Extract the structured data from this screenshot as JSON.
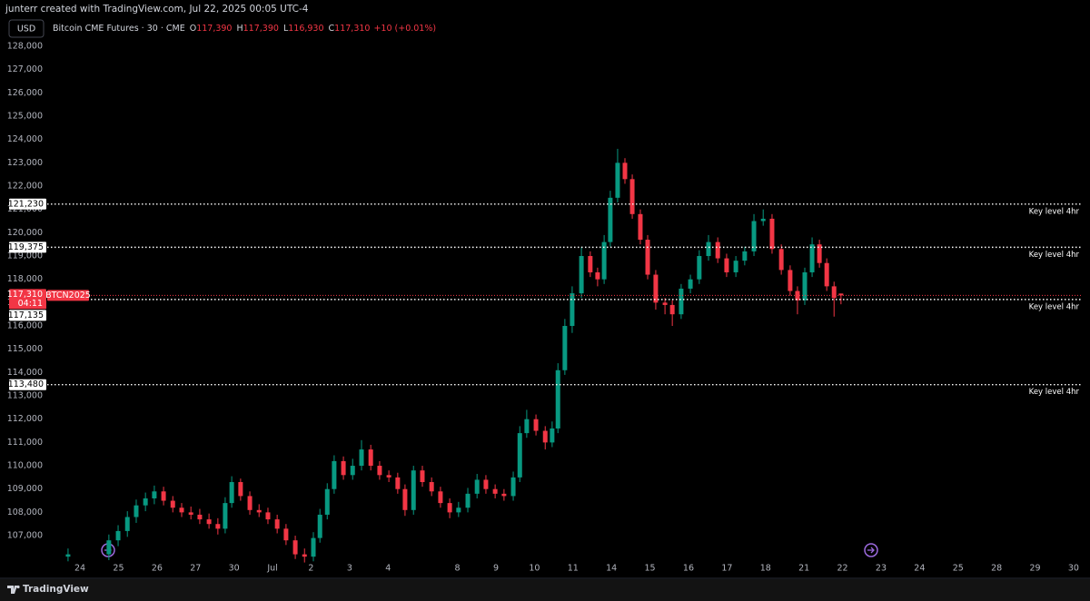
{
  "header": {
    "text": "junterr created with TradingView.com, Jul 22, 2025 00:05 UTC-4"
  },
  "footer": {
    "brand": "TradingView"
  },
  "chart_data": {
    "type": "candlestick",
    "currency": "USD",
    "legend": {
      "symbol": "Bitcoin CME Futures · 30 · CME",
      "fields": [
        {
          "key": "O",
          "value": "117,390"
        },
        {
          "key": "H",
          "value": "117,390"
        },
        {
          "key": "L",
          "value": "116,930"
        },
        {
          "key": "C",
          "value": "117,310"
        }
      ],
      "change": "+10 (+0.01%)"
    },
    "up_color": "#089981",
    "down_color": "#f23645",
    "x": [
      -0.31,
      0.75,
      0.99,
      1.23,
      1.46,
      1.7,
      1.93,
      2.17,
      2.41,
      2.64,
      2.88,
      3.11,
      3.35,
      3.58,
      3.77,
      3.94,
      4.17,
      4.41,
      4.65,
      4.88,
      5.12,
      5.35,
      5.59,
      5.83,
      6.06,
      6.23,
      6.42,
      6.6,
      6.84,
      7.08,
      7.31,
      7.55,
      7.78,
      8.02,
      8.25,
      8.44,
      8.66,
      8.89,
      9.13,
      9.36,
      9.6,
      9.83,
      10.07,
      10.31,
      10.54,
      10.78,
      11.01,
      11.25,
      11.42,
      11.6,
      11.84,
      12.08,
      12.26,
      12.41,
      12.59,
      12.78,
      13.02,
      13.25,
      13.44,
      13.61,
      13.77,
      13.96,
      14.15,
      14.34,
      14.55,
      14.74,
      14.95,
      15.19,
      15.38,
      15.61,
      15.85,
      16.08,
      16.32,
      16.56,
      16.79,
      17.03,
      17.26,
      17.5,
      17.74,
      17.97,
      18.21,
      18.44,
      18.63,
      18.82,
      19.01,
      19.2,
      19.39,
      19.58,
      19.76
    ],
    "open": [
      106100,
      106200,
      106800,
      107200,
      107800,
      108300,
      108600,
      108900,
      108500,
      108200,
      108000,
      107900,
      107700,
      107500,
      107300,
      108400,
      109300,
      108700,
      108100,
      108000,
      107700,
      107300,
      106800,
      106200,
      106100,
      106900,
      107900,
      109000,
      110200,
      109600,
      110000,
      110700,
      110000,
      109600,
      109500,
      109000,
      108100,
      109800,
      109300,
      108900,
      108400,
      108000,
      108200,
      108800,
      109400,
      109000,
      108800,
      108700,
      109500,
      111400,
      112000,
      111500,
      111000,
      111600,
      114100,
      116000,
      117400,
      119000,
      118300,
      118000,
      119600,
      121500,
      123000,
      122300,
      120800,
      119700,
      118200,
      117000,
      116900,
      116500,
      117600,
      118000,
      119000,
      119600,
      118900,
      118300,
      118800,
      119200,
      120500,
      120600,
      119300,
      118400,
      117500,
      117100,
      118300,
      119500,
      118700,
      117700,
      117390
    ],
    "high": [
      106450,
      107050,
      107450,
      108050,
      108550,
      108850,
      109150,
      109100,
      108700,
      108400,
      108250,
      108150,
      107950,
      107750,
      108650,
      109550,
      109450,
      108900,
      108350,
      108200,
      107900,
      107500,
      107000,
      106450,
      107150,
      108150,
      109250,
      110450,
      110400,
      110300,
      111100,
      110900,
      110200,
      109800,
      109700,
      109200,
      110000,
      110000,
      109500,
      109100,
      108600,
      108450,
      109050,
      109650,
      109600,
      109200,
      109000,
      109750,
      111700,
      112400,
      112200,
      111700,
      111900,
      114400,
      116300,
      117700,
      119400,
      119200,
      118500,
      119900,
      121800,
      123600,
      123200,
      122500,
      121000,
      119900,
      118400,
      117200,
      117100,
      117800,
      118200,
      119250,
      119900,
      119800,
      119100,
      119000,
      119400,
      120800,
      121000,
      120800,
      119500,
      118600,
      117700,
      118500,
      119800,
      119700,
      118900,
      117900,
      117390
    ],
    "low": [
      105900,
      105950,
      106550,
      106950,
      107550,
      108050,
      108350,
      108300,
      108000,
      107800,
      107700,
      107500,
      107300,
      107050,
      107100,
      108200,
      108500,
      107900,
      107800,
      107500,
      107100,
      106600,
      106000,
      105850,
      105900,
      106700,
      107700,
      108800,
      109400,
      109400,
      109800,
      109800,
      109400,
      109300,
      108800,
      107850,
      107900,
      109100,
      108700,
      108200,
      107750,
      107800,
      108000,
      108600,
      108800,
      108600,
      108500,
      108500,
      109300,
      111200,
      111300,
      110700,
      110800,
      111400,
      113900,
      115700,
      117200,
      118100,
      117700,
      117800,
      119400,
      121300,
      122100,
      120600,
      119500,
      118000,
      116700,
      116500,
      116000,
      116300,
      117400,
      117800,
      118800,
      118700,
      118100,
      118100,
      118600,
      119000,
      120300,
      119100,
      118200,
      117300,
      116500,
      116900,
      118100,
      118500,
      117500,
      116400,
      116930
    ],
    "close": [
      106200,
      106800,
      107200,
      107800,
      108300,
      108600,
      108900,
      108500,
      108200,
      108000,
      107900,
      107700,
      107500,
      107300,
      108400,
      109300,
      108700,
      108100,
      108000,
      107700,
      107300,
      106800,
      106200,
      106100,
      106900,
      107900,
      109000,
      110200,
      109600,
      110000,
      110700,
      110000,
      109600,
      109500,
      109000,
      108100,
      109800,
      109300,
      108900,
      108400,
      108000,
      108200,
      108800,
      109400,
      109000,
      108800,
      108700,
      109500,
      111400,
      112000,
      111500,
      111000,
      111600,
      114100,
      116000,
      117400,
      119000,
      118300,
      118000,
      119600,
      121500,
      123000,
      122300,
      120800,
      119700,
      118200,
      117000,
      116900,
      116500,
      117600,
      118000,
      119000,
      119600,
      118900,
      118300,
      118800,
      119200,
      120500,
      120600,
      119300,
      118400,
      117500,
      117100,
      118300,
      119500,
      118700,
      117700,
      117200,
      117310
    ],
    "last_price_label": "117,310",
    "countdown": "04:11",
    "symbol_tag": "BTCN2025",
    "key_levels": {
      "values": [
        121230,
        119375,
        117135,
        113480
      ],
      "value_labels": [
        "121,230",
        "119,375",
        "117,135",
        "113,480"
      ],
      "notes": [
        "Key level 4hr",
        "Key level 4hr",
        "Key level 4hr",
        "Key level 4hr"
      ]
    },
    "xlim": [
      -0.78,
      25.99
    ],
    "xticks": [
      {
        "value": 0,
        "label": "24"
      },
      {
        "value": 1,
        "label": "25"
      },
      {
        "value": 2,
        "label": "26"
      },
      {
        "value": 3,
        "label": "27"
      },
      {
        "value": 4,
        "label": "30"
      },
      {
        "value": 5,
        "label": "Jul"
      },
      {
        "value": 6,
        "label": "2"
      },
      {
        "value": 7,
        "label": "3"
      },
      {
        "value": 8,
        "label": "4"
      },
      {
        "value": 9.8,
        "label": "8"
      },
      {
        "value": 10.8,
        "label": "9"
      },
      {
        "value": 11.8,
        "label": "10"
      },
      {
        "value": 12.8,
        "label": "11"
      },
      {
        "value": 13.8,
        "label": "14"
      },
      {
        "value": 14.8,
        "label": "15"
      },
      {
        "value": 15.8,
        "label": "16"
      },
      {
        "value": 16.8,
        "label": "17"
      },
      {
        "value": 17.8,
        "label": "18"
      },
      {
        "value": 18.8,
        "label": "21"
      },
      {
        "value": 19.8,
        "label": "22"
      },
      {
        "value": 20.8,
        "label": "23"
      },
      {
        "value": 21.8,
        "label": "24"
      },
      {
        "value": 22.8,
        "label": "25"
      },
      {
        "value": 23.8,
        "label": "28"
      },
      {
        "value": 24.8,
        "label": "29"
      },
      {
        "value": 25.8,
        "label": "30"
      }
    ],
    "ylim": [
      105210,
      128350
    ],
    "yticks": [
      {
        "value": 107000,
        "label": "107,000"
      },
      {
        "value": 108000,
        "label": "108,000"
      },
      {
        "value": 109000,
        "label": "109,000"
      },
      {
        "value": 110000,
        "label": "110,000"
      },
      {
        "value": 111000,
        "label": "111,000"
      },
      {
        "value": 112000,
        "label": "112,000"
      },
      {
        "value": 113000,
        "label": "113,000"
      },
      {
        "value": 114000,
        "label": "114,000"
      },
      {
        "value": 115000,
        "label": "115,000"
      },
      {
        "value": 116000,
        "label": "116,000"
      },
      {
        "value": 117000,
        "label": "117,000"
      },
      {
        "value": 118000,
        "label": "118,000"
      },
      {
        "value": 119000,
        "label": "119,000"
      },
      {
        "value": 120000,
        "label": "120,000"
      },
      {
        "value": 121000,
        "label": "121,000"
      },
      {
        "value": 122000,
        "label": "122,000"
      },
      {
        "value": 123000,
        "label": "123,000"
      },
      {
        "value": 124000,
        "label": "124,000"
      },
      {
        "value": 125000,
        "label": "125,000"
      },
      {
        "value": 126000,
        "label": "126,000"
      },
      {
        "value": 127000,
        "label": "127,000"
      },
      {
        "value": 128000,
        "label": "128,000"
      }
    ]
  }
}
